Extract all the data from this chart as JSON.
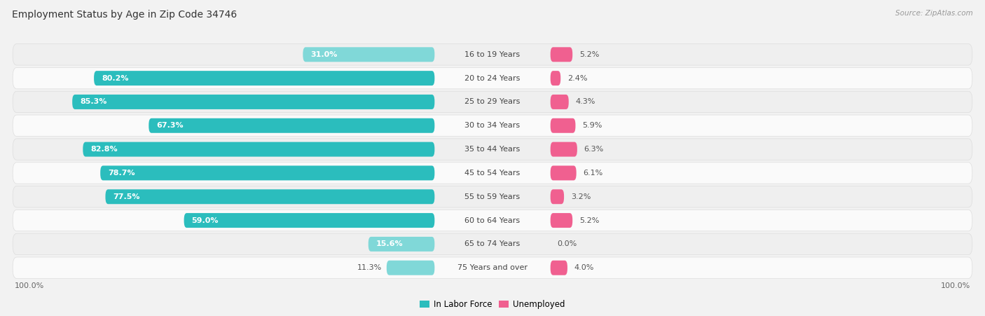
{
  "title": "Employment Status by Age in Zip Code 34746",
  "source": "Source: ZipAtlas.com",
  "categories": [
    "16 to 19 Years",
    "20 to 24 Years",
    "25 to 29 Years",
    "30 to 34 Years",
    "35 to 44 Years",
    "45 to 54 Years",
    "55 to 59 Years",
    "60 to 64 Years",
    "65 to 74 Years",
    "75 Years and over"
  ],
  "labor_force": [
    31.0,
    80.2,
    85.3,
    67.3,
    82.8,
    78.7,
    77.5,
    59.0,
    15.6,
    11.3
  ],
  "unemployed": [
    5.2,
    2.4,
    4.3,
    5.9,
    6.3,
    6.1,
    3.2,
    5.2,
    0.0,
    4.0
  ],
  "labor_color_full": "#2BBDBD",
  "labor_color_light": "#80D8D8",
  "unemployed_color_full": "#F06090",
  "unemployed_color_light": "#F4A0BC",
  "row_bg_light": "#EFEFEF",
  "row_bg_white": "#FAFAFA",
  "title_fontsize": 10,
  "bar_label_fontsize": 8,
  "cat_label_fontsize": 8,
  "legend_fontsize": 8.5,
  "source_fontsize": 7.5,
  "axis_fontsize": 8,
  "max_labor": 100.0,
  "max_unemployed": 100.0,
  "left_axis_label": "100.0%",
  "right_axis_label": "100.0%",
  "legend_labor": "In Labor Force",
  "legend_unemployed": "Unemployed"
}
